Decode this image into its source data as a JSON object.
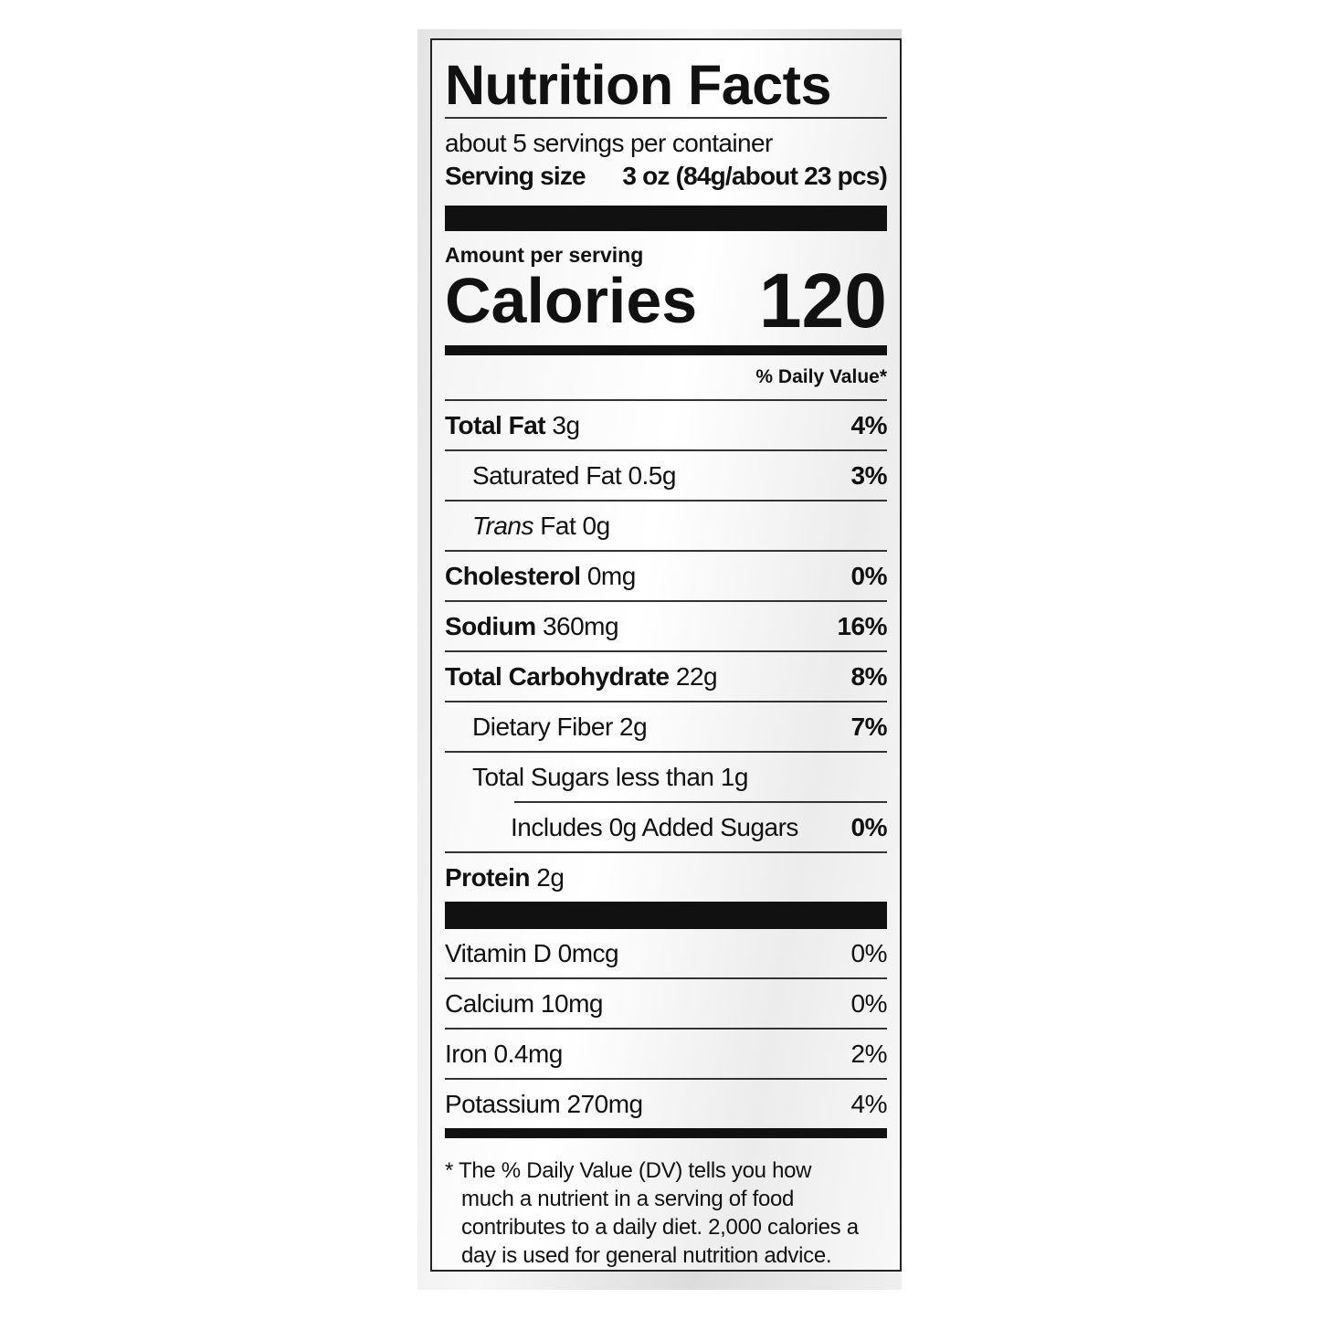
{
  "title": "Nutrition Facts",
  "servings": "about 5 servings per container",
  "serving_size": {
    "label": "Serving size",
    "value": "3 oz (84g/about 23 pcs)"
  },
  "amount_per_serving": "Amount per serving",
  "calories": {
    "label": "Calories",
    "value": "120"
  },
  "daily_value_header": "% Daily Value*",
  "nutrients": [
    {
      "name": "Total Fat",
      "amount": "3g",
      "dv": "4%",
      "sub": [
        {
          "name": "Saturated Fat",
          "amount": "0.5g",
          "dv": "3%"
        },
        {
          "prefix": "Trans",
          "name": "Fat",
          "amount": "0g"
        }
      ]
    },
    {
      "name": "Cholesterol",
      "amount": "0mg",
      "dv": "0%"
    },
    {
      "name": "Sodium",
      "amount": "360mg",
      "dv": "16%"
    },
    {
      "name": "Total Carbohydrate",
      "amount": "22g",
      "dv": "8%",
      "sub": [
        {
          "name": "Dietary Fiber",
          "amount": "2g",
          "dv": "7%"
        },
        {
          "name": "Total Sugars",
          "amount": "less than 1g",
          "sub": [
            {
              "name": "Includes 0g Added Sugars",
              "dv": "0%"
            }
          ]
        }
      ]
    },
    {
      "name": "Protein",
      "amount": "2g"
    }
  ],
  "vitamins": [
    {
      "name": "Vitamin D",
      "amount": "0mcg",
      "dv": "0%"
    },
    {
      "name": "Calcium",
      "amount": "10mg",
      "dv": "0%"
    },
    {
      "name": "Iron",
      "amount": "0.4mg",
      "dv": "2%"
    },
    {
      "name": "Potassium",
      "amount": "270mg",
      "dv": "4%"
    }
  ],
  "footnote": "* The % Daily Value (DV) tells you how much a nutrient in a serving of food contributes to a daily diet. 2,000 calories a day is used for general nutrition advice."
}
